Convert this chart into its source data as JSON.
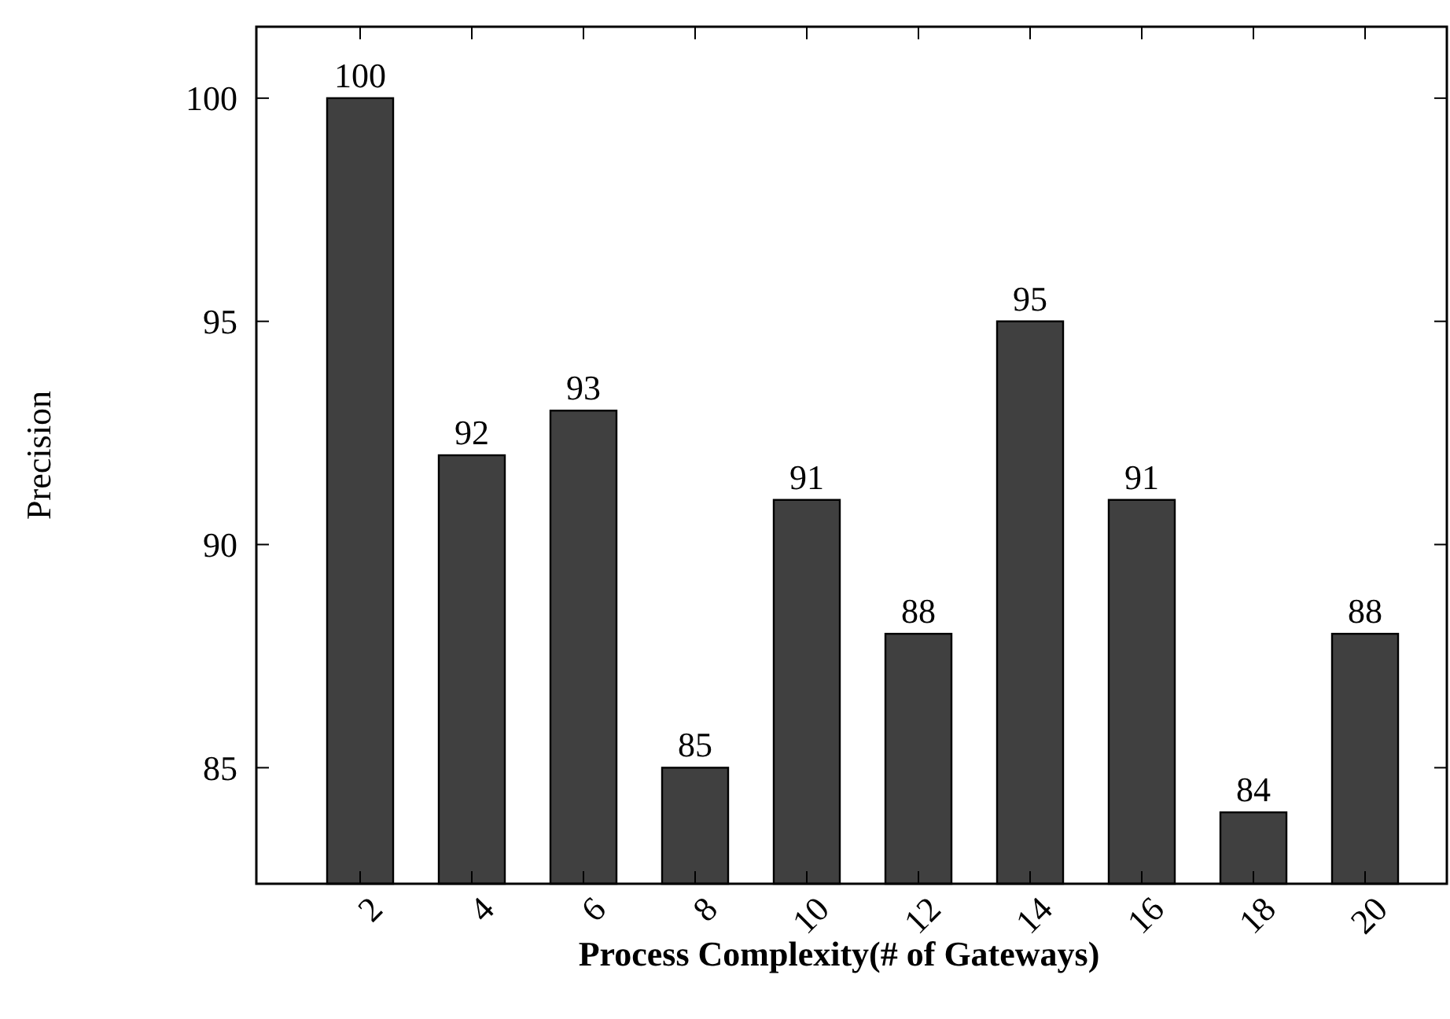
{
  "chart_data": {
    "type": "bar",
    "xlabel": "Process Complexity(# of Gateways)",
    "ylabel": "Precision",
    "categories": [
      "2",
      "4",
      "6",
      "8",
      "10",
      "12",
      "14",
      "16",
      "18",
      "20"
    ],
    "values": [
      100,
      92,
      93,
      85,
      91,
      88,
      95,
      91,
      84,
      88
    ],
    "color": "#404040",
    "ylim": [
      82.4,
      101.6
    ],
    "yticks": [
      85,
      90,
      95,
      100
    ],
    "data_labels": true,
    "grid": false
  }
}
